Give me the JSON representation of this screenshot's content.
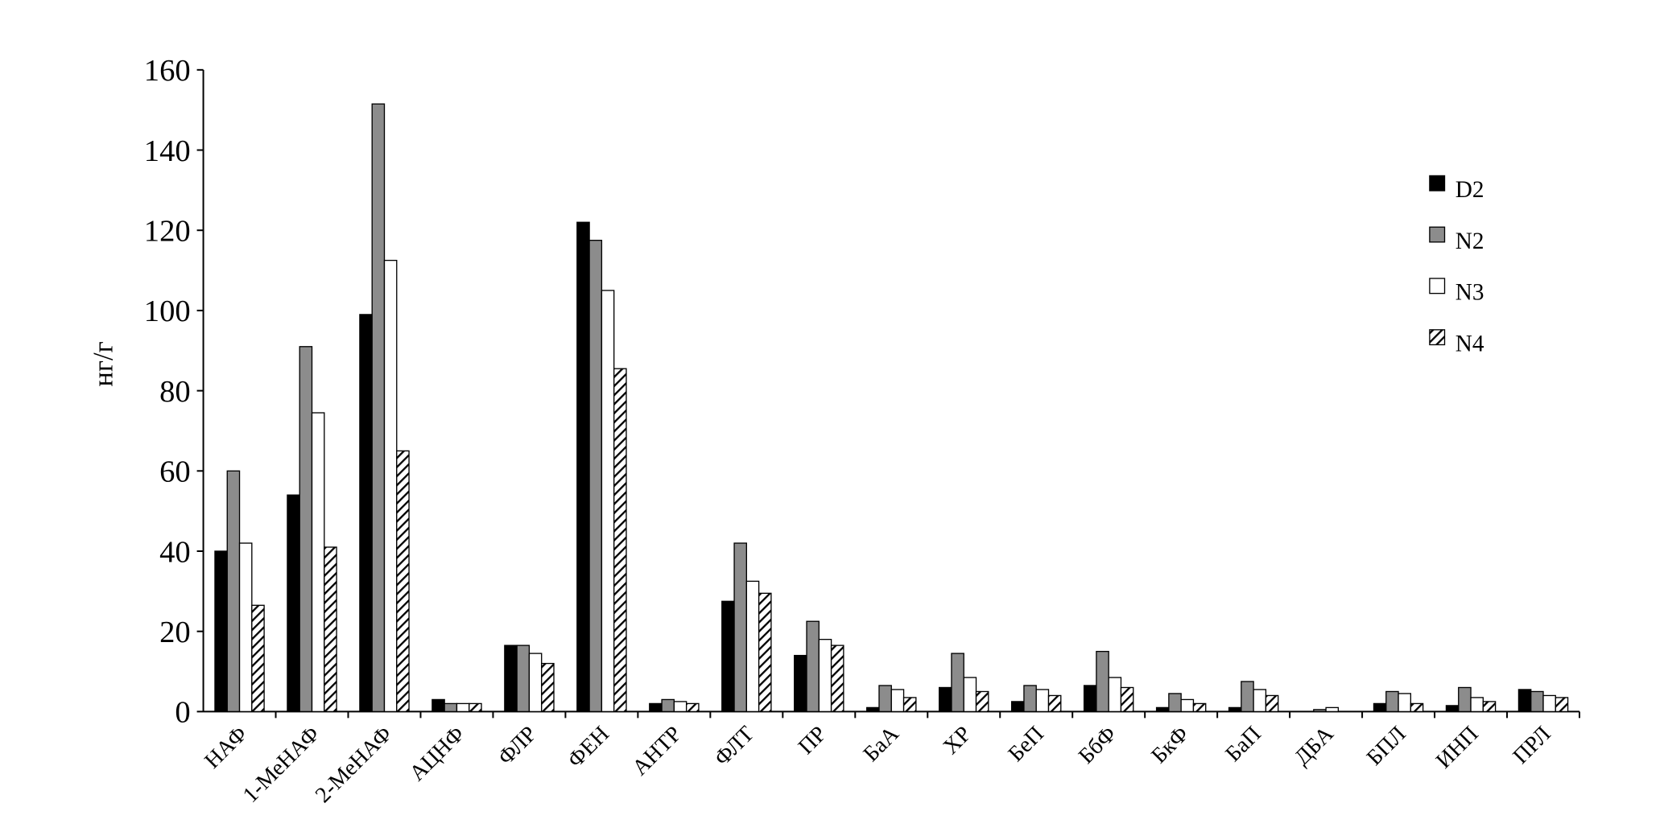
{
  "chart_data": {
    "type": "bar",
    "y_label": "нг/г",
    "categories": [
      "НАФ",
      "1-МеНАФ",
      "2-МеНАФ",
      "АЦНФ",
      "ФЛР",
      "ФЕН",
      "АНТР",
      "ФЛТ",
      "ПР",
      "БаА",
      "ХР",
      "БеП",
      "БбФ",
      "БкФ",
      "БаП",
      "ДБА",
      "БПЛ",
      "ИНП",
      "ПРЛ"
    ],
    "series": [
      {
        "name": "D2",
        "color": "#000000",
        "values": [
          40,
          54,
          99,
          3,
          16.5,
          122,
          2,
          27.5,
          14,
          1,
          6,
          2.5,
          6.5,
          1,
          1,
          0,
          2,
          1.5,
          5.5
        ]
      },
      {
        "name": "N2",
        "color": "#8c8c8c",
        "values": [
          60,
          91,
          151.5,
          2,
          16.5,
          117.5,
          3,
          42,
          22.5,
          6.5,
          14.5,
          6.5,
          15,
          4.5,
          7.5,
          0.5,
          5,
          6,
          5
        ]
      },
      {
        "name": "N3",
        "color": "#ffffff",
        "values": [
          42,
          74.5,
          112.5,
          2,
          14.5,
          105,
          2.5,
          32.5,
          18,
          5.5,
          8.5,
          5.5,
          8.5,
          3,
          5.5,
          1,
          4.5,
          3.5,
          4
        ]
      },
      {
        "name": "N4",
        "color": "#000000",
        "pattern": "hatch",
        "values": [
          26.5,
          41,
          65,
          2,
          12,
          85.5,
          2,
          29.5,
          16.5,
          3.5,
          5,
          4,
          6,
          2,
          4,
          0,
          2,
          2.5,
          3.5
        ]
      }
    ],
    "ylim": [
      0,
      160
    ],
    "yticks": [
      0,
      20,
      40,
      60,
      80,
      100,
      120,
      140,
      160
    ],
    "grid": false,
    "legend": "right"
  }
}
